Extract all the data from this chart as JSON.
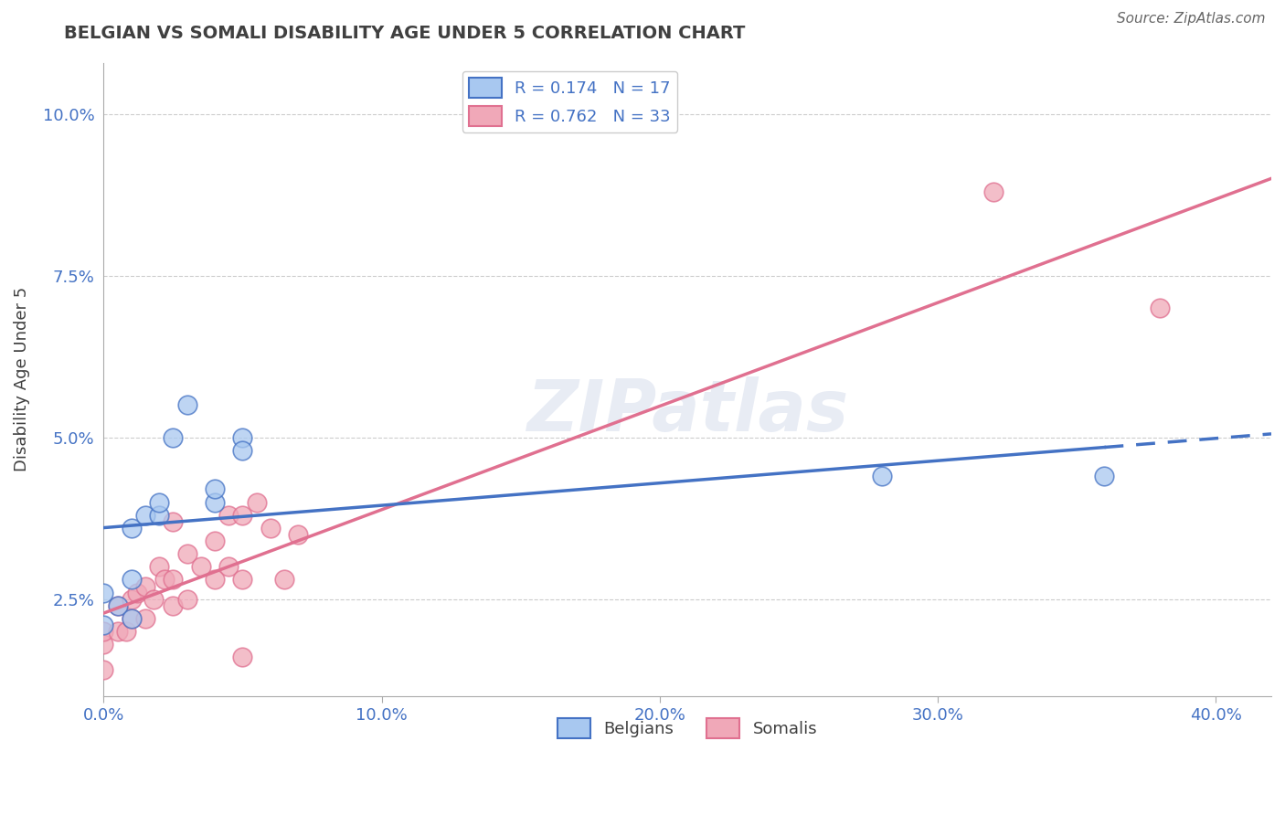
{
  "title": "BELGIAN VS SOMALI DISABILITY AGE UNDER 5 CORRELATION CHART",
  "source": "Source: ZipAtlas.com",
  "xlabel_ticks": [
    "0.0%",
    "10.0%",
    "20.0%",
    "30.0%",
    "40.0%"
  ],
  "xlabel_tick_vals": [
    0.0,
    0.1,
    0.2,
    0.3,
    0.4
  ],
  "ylabel_ticks": [
    "2.5%",
    "5.0%",
    "7.5%",
    "10.0%"
  ],
  "ylabel_tick_vals": [
    0.025,
    0.05,
    0.075,
    0.1
  ],
  "xlim": [
    0.0,
    0.42
  ],
  "ylim": [
    0.01,
    0.108
  ],
  "ylabel": "Disability Age Under 5",
  "legend_belgian_R": "R = 0.174",
  "legend_belgian_N": "N = 17",
  "legend_somali_R": "R = 0.762",
  "legend_somali_N": "N = 33",
  "belgian_color": "#a8c8f0",
  "somali_color": "#f0a8b8",
  "belgian_line_color": "#4472c4",
  "somali_line_color": "#e07090",
  "belgian_scatter_x": [
    0.0,
    0.0,
    0.005,
    0.01,
    0.01,
    0.01,
    0.015,
    0.02,
    0.02,
    0.025,
    0.03,
    0.04,
    0.04,
    0.05,
    0.05,
    0.28,
    0.36
  ],
  "belgian_scatter_y": [
    0.021,
    0.026,
    0.024,
    0.022,
    0.028,
    0.036,
    0.038,
    0.038,
    0.04,
    0.05,
    0.055,
    0.04,
    0.042,
    0.05,
    0.048,
    0.044,
    0.044
  ],
  "somali_scatter_x": [
    0.0,
    0.0,
    0.0,
    0.005,
    0.005,
    0.008,
    0.01,
    0.01,
    0.012,
    0.015,
    0.015,
    0.018,
    0.02,
    0.022,
    0.025,
    0.025,
    0.025,
    0.03,
    0.03,
    0.035,
    0.04,
    0.04,
    0.045,
    0.045,
    0.05,
    0.05,
    0.05,
    0.055,
    0.06,
    0.065,
    0.07,
    0.32,
    0.38
  ],
  "somali_scatter_y": [
    0.014,
    0.018,
    0.02,
    0.02,
    0.024,
    0.02,
    0.022,
    0.025,
    0.026,
    0.022,
    0.027,
    0.025,
    0.03,
    0.028,
    0.024,
    0.028,
    0.037,
    0.025,
    0.032,
    0.03,
    0.028,
    0.034,
    0.03,
    0.038,
    0.016,
    0.028,
    0.038,
    0.04,
    0.036,
    0.028,
    0.035,
    0.088,
    0.07
  ],
  "watermark": "ZIPatlas",
  "bg_color": "#ffffff",
  "grid_color": "#cccccc",
  "title_color": "#404040",
  "tick_label_color": "#4472c4"
}
